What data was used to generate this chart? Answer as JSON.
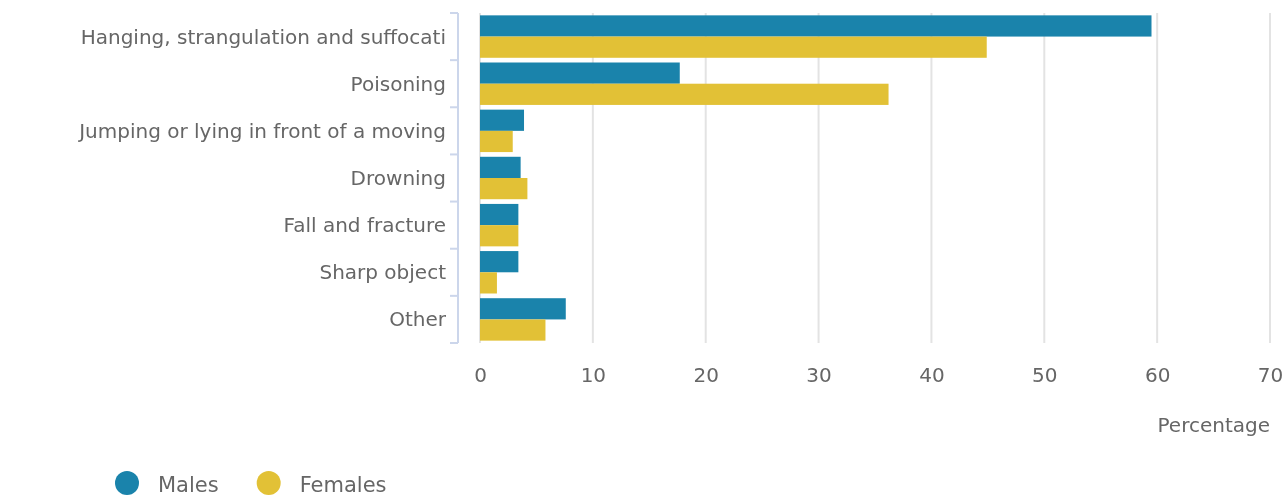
{
  "chart_data": {
    "type": "bar",
    "orientation": "horizontal",
    "xlabel": "Percentage",
    "categories": [
      "Hanging, strangulation and suffocati",
      "Poisoning",
      "Jumping or lying in front of a moving",
      "Drowning",
      "Fall and fracture",
      "Sharp object",
      "Other"
    ],
    "series": [
      {
        "name": "Males",
        "color": "#1a83ab",
        "values": [
          59.5,
          17.7,
          3.9,
          3.6,
          3.4,
          3.4,
          7.6
        ]
      },
      {
        "name": "Females",
        "color": "#e2c136",
        "values": [
          44.9,
          36.2,
          2.9,
          4.2,
          3.4,
          1.5,
          5.8
        ]
      }
    ],
    "xlim": [
      0,
      70
    ],
    "xticks": [
      0,
      10,
      20,
      30,
      40,
      50,
      60,
      70
    ],
    "grid": "x",
    "legend": "bottom left"
  }
}
